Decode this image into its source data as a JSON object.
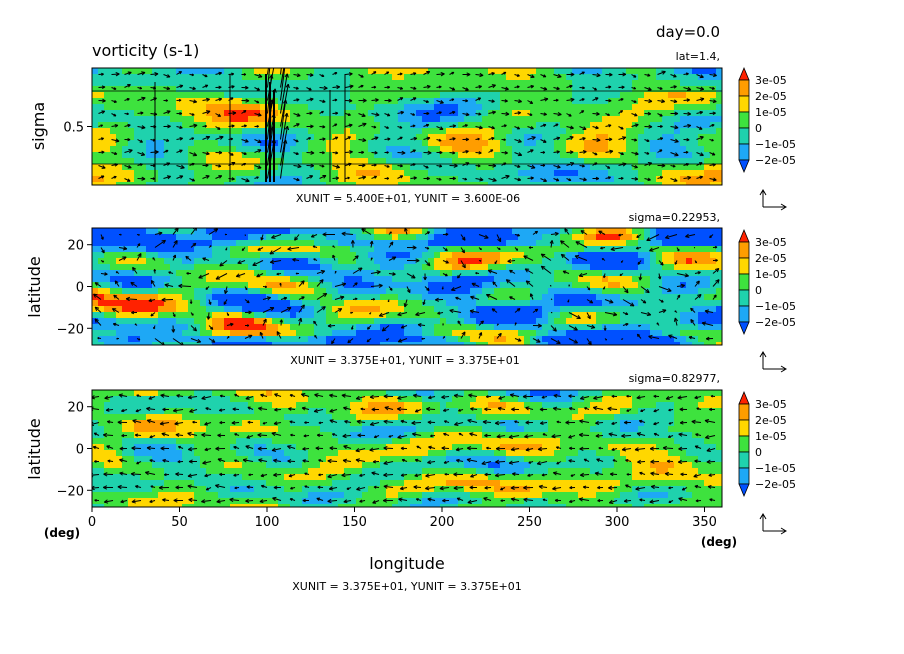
{
  "figure": {
    "title": "vorticity (s-1)",
    "time_label": "day=0.0",
    "x_axis_label": "longitude",
    "deg_label_left": "(deg)",
    "deg_label_right": "(deg)"
  },
  "colors": {
    "levels": [
      "#0050ff",
      "#1ea8f5",
      "#1fd2ad",
      "#3ee23e",
      "#ffd700",
      "#ff9d00",
      "#ff2200"
    ],
    "vector": "#000000"
  },
  "chart_data": [
    {
      "type": "heatmap",
      "panel": "top",
      "variable": "vorticity (s-1)",
      "slice_label": "lat=1.4,",
      "xlabel": "",
      "ylabel": "sigma",
      "xlim": [
        0,
        360
      ],
      "ylim": [
        0.0,
        1.0
      ],
      "yticks": [
        {
          "v": 0.5,
          "label": "0.5"
        }
      ],
      "xticks": [],
      "overlay": "vector arrows",
      "unit_text": "XUNIT = 5.400E+01, YUNIT = 3.600E-06",
      "colorbar": {
        "levels": [
          -2e-05,
          -1e-05,
          0,
          1e-05,
          2e-05,
          3e-05
        ],
        "labels": [
          "3e-05",
          "2e-05",
          "1e-05",
          "0",
          "−1e-05",
          "−2e-05"
        ]
      }
    },
    {
      "type": "heatmap",
      "panel": "middle",
      "variable": "vorticity (s-1)",
      "slice_label": "sigma=0.22953,",
      "xlabel": "",
      "ylabel": "latitude",
      "xlim": [
        0,
        360
      ],
      "ylim": [
        -28,
        28
      ],
      "yticks": [
        {
          "v": 20,
          "label": "20"
        },
        {
          "v": 0,
          "label": "0"
        },
        {
          "v": -20,
          "label": "−20"
        }
      ],
      "xticks": [],
      "overlay": "vector arrows",
      "unit_text": "XUNIT = 3.375E+01, YUNIT = 3.375E+01",
      "colorbar": {
        "levels": [
          -2e-05,
          -1e-05,
          0,
          1e-05,
          2e-05,
          3e-05
        ],
        "labels": [
          "3e-05",
          "2e-05",
          "1e-05",
          "0",
          "−1e-05",
          "−2e-05"
        ]
      }
    },
    {
      "type": "heatmap",
      "panel": "bottom",
      "variable": "vorticity (s-1)",
      "slice_label": "sigma=0.82977,",
      "xlabel": "longitude",
      "ylabel": "latitude",
      "xlim": [
        0,
        360
      ],
      "ylim": [
        -28,
        28
      ],
      "yticks": [
        {
          "v": 20,
          "label": "20"
        },
        {
          "v": 0,
          "label": "0"
        },
        {
          "v": -20,
          "label": "−20"
        }
      ],
      "xticks": [
        {
          "v": 0,
          "label": "0"
        },
        {
          "v": 50,
          "label": "50"
        },
        {
          "v": 100,
          "label": "100"
        },
        {
          "v": 150,
          "label": "150"
        },
        {
          "v": 200,
          "label": "200"
        },
        {
          "v": 250,
          "label": "250"
        },
        {
          "v": 300,
          "label": "300"
        },
        {
          "v": 350,
          "label": "350"
        }
      ],
      "overlay": "vector arrows",
      "unit_text": "XUNIT = 3.375E+01, YUNIT = 3.375E+01",
      "colorbar": {
        "levels": [
          -2e-05,
          -1e-05,
          0,
          1e-05,
          2e-05,
          3e-05
        ],
        "labels": [
          "3e-05",
          "2e-05",
          "1e-05",
          "0",
          "−1e-05",
          "−2e-05"
        ]
      }
    }
  ]
}
